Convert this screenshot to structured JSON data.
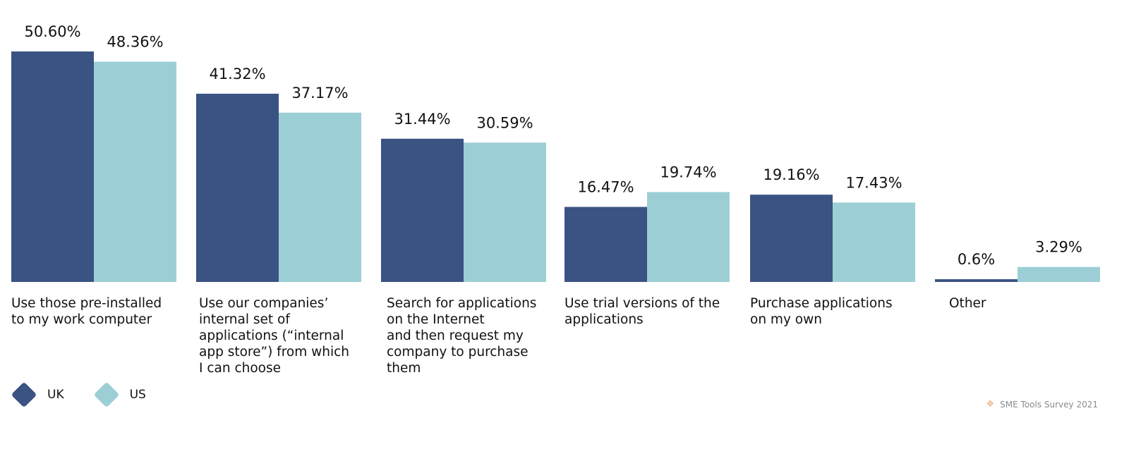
{
  "chart_data": {
    "type": "bar",
    "categories": [
      "Use those pre-installed\nto my work computer",
      "Use our companies’\ninternal set of\napplications (“internal\napp store”) from which\nI can choose",
      "Search for applications\non the Internet\nand then request my\ncompany to purchase\nthem",
      "Use trial versions of the\napplications",
      "Purchase applications\non my own",
      "Other"
    ],
    "series": [
      {
        "name": "UK",
        "color": "#3a5383",
        "values": [
          50.6,
          41.32,
          31.44,
          16.47,
          19.16,
          0.6
        ],
        "labels": [
          "50.60%",
          "41.32%",
          "31.44%",
          "16.47%",
          "19.16%",
          "0.6%"
        ]
      },
      {
        "name": "US",
        "color": "#9ccfd5",
        "values": [
          48.36,
          37.17,
          30.59,
          19.74,
          17.43,
          3.29
        ],
        "labels": [
          "48.36%",
          "37.17%",
          "30.59%",
          "19.74%",
          "17.43%",
          "3.29%"
        ]
      }
    ],
    "title": "",
    "xlabel": "",
    "ylabel": "",
    "ylim": [
      0,
      50.6
    ],
    "grid": false,
    "legend_position": "bottom-left"
  },
  "legend": {
    "uk_label": "UK",
    "us_label": "US"
  },
  "source": {
    "icon": "sparkle-icon",
    "text": "SME Tools Survey 2021"
  }
}
